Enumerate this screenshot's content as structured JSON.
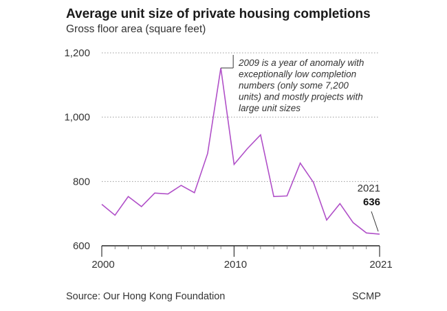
{
  "chart_data": {
    "type": "line",
    "title": "Average unit size of private housing completions",
    "subtitle": "Gross floor area (square feet)",
    "x": [
      2000,
      2001,
      2002,
      2003,
      2004,
      2005,
      2006,
      2007,
      2008,
      2009,
      2010,
      2011,
      2012,
      2013,
      2014,
      2015,
      2016,
      2017,
      2018,
      2019,
      2020,
      2021
    ],
    "series": [
      {
        "values": [
          729,
          695,
          753,
          722,
          764,
          761,
          788,
          765,
          887,
          1153,
          853,
          902,
          945,
          753,
          755,
          857,
          797,
          680,
          731,
          672,
          640,
          636
        ],
        "color": "#b04fc8"
      }
    ],
    "ylim": [
      600,
      1200
    ],
    "yticks": [
      "600",
      "800",
      "1,000",
      "1,200"
    ],
    "xticks": [
      "2000",
      "2010",
      "2021"
    ],
    "grid": "horizontal dotted",
    "annotation": {
      "x": 2009,
      "lines": [
        "2009 is a year of anomaly with",
        "exceptionally low completion",
        "numbers (only some 7,200",
        "units) and mostly projects with",
        "large unit sizes"
      ]
    },
    "end_label": {
      "year": "2021",
      "value": "636"
    }
  },
  "source": "Source: Our Hong Kong Foundation",
  "brand": "SCMP"
}
